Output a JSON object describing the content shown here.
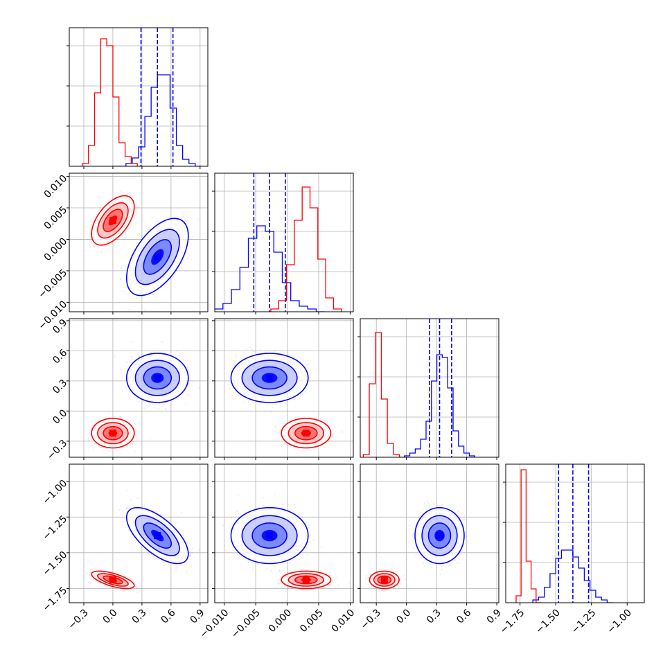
{
  "chart_data": {
    "type": "corner",
    "grid": true,
    "series": [
      {
        "color": "#0000ff",
        "quantiles": [
          [
            0.29,
            0.46,
            0.62
          ],
          [
            -0.0053,
            -0.0028,
            -0.0003
          ],
          [
            0.23,
            0.33,
            0.45
          ],
          [
            -1.48,
            -1.38,
            -1.27
          ]
        ],
        "means": [
          0.46,
          -0.0028,
          0.33,
          -1.38
        ],
        "sds": [
          0.13,
          0.0025,
          0.1,
          0.08
        ],
        "hist": [
          [
            0,
            0,
            0.02,
            0.06,
            0.14,
            0.36,
            0.57,
            0.66,
            0.66,
            0.42,
            0.15,
            0.05,
            0.02,
            0
          ],
          [
            0.02,
            0.06,
            0.16,
            0.32,
            0.53,
            0.62,
            0.58,
            0.43,
            0.21,
            0.08,
            0.04,
            0.02,
            0
          ],
          [
            0.01,
            0.03,
            0.06,
            0.13,
            0.26,
            0.55,
            0.74,
            0.72,
            0.5,
            0.19,
            0.08,
            0.03,
            0.01
          ],
          [
            0.02,
            0.04,
            0.11,
            0.21,
            0.32,
            0.38,
            0.38,
            0.33,
            0.25,
            0.16,
            0.09,
            0.04,
            0.02,
            0
          ]
        ]
      },
      {
        "color": "#ff0000",
        "means": [
          0.0,
          0.003,
          -0.22,
          -1.69
        ],
        "sds": [
          0.09,
          0.0016,
          0.06,
          0.025
        ],
        "hist": [
          [
            0.02,
            0.15,
            0.53,
            0.92,
            0.87,
            0.5,
            0.17,
            0.07,
            0.02,
            0
          ],
          [
            0.02,
            0.08,
            0.34,
            0.66,
            0.9,
            0.75,
            0.38,
            0.1,
            0.02
          ],
          [
            0.02,
            0.53,
            0.9,
            0.42,
            0.1,
            0.02,
            0
          ],
          [
            0.05,
            0.96,
            0.3,
            0.1,
            0
          ]
        ]
      }
    ],
    "correlations": {
      "0-1": 0.55,
      "0-2": 0.0,
      "0-3": -0.65,
      "1-2": 0.0,
      "1-3": 0.0,
      "2-3": 0.0
    },
    "params": [
      {
        "range": [
          -0.45,
          0.98
        ],
        "ticks": [
          -0.3,
          0.0,
          0.3,
          0.6,
          0.9
        ],
        "tick_labels": [
          "−0.3",
          "0.0",
          "0.3",
          "0.6",
          "0.9"
        ]
      },
      {
        "range": [
          -0.0115,
          0.0105
        ],
        "ticks": [
          -0.01,
          -0.005,
          0.0,
          0.005,
          0.01
        ],
        "tick_labels": [
          "−0.010",
          "−0.005",
          "0.000",
          "0.005",
          "0.010"
        ]
      },
      {
        "range": [
          -0.46,
          0.92
        ],
        "ticks": [
          -0.3,
          0.0,
          0.3,
          0.6,
          0.9
        ],
        "tick_labels": [
          "−0.3",
          "0.0",
          "0.3",
          "0.6",
          "0.9"
        ]
      },
      {
        "range": [
          -1.85,
          -0.88
        ],
        "ticks": [
          -1.75,
          -1.5,
          -1.25,
          -1.0
        ],
        "tick_labels": [
          "−1.75",
          "−1.50",
          "−1.25",
          "−1.00"
        ]
      }
    ]
  }
}
